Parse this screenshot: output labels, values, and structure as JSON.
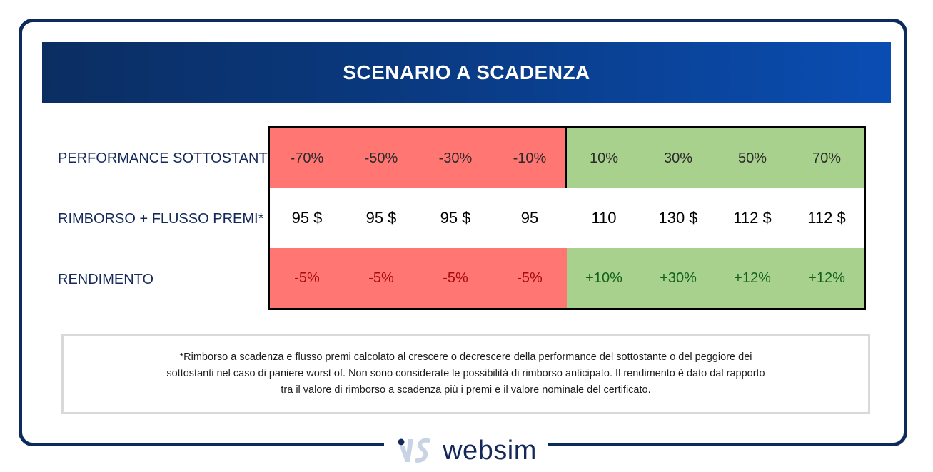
{
  "header": {
    "title": "SCENARIO A SCADENZA"
  },
  "rows": {
    "performance": {
      "label": "PERFORMANCE SOTTOSTANTE",
      "values": [
        "-70%",
        "-50%",
        "-30%",
        "-10%",
        "10%",
        "30%",
        "50%",
        "70%"
      ]
    },
    "rimborso": {
      "label": "RIMBORSO + FLUSSO PREMI*",
      "values": [
        "95 $",
        "95 $",
        "95 $",
        "95",
        "110",
        "130 $",
        "112 $",
        "112 $"
      ]
    },
    "rendimento": {
      "label": "RENDIMENTO",
      "values": [
        "-5%",
        "-5%",
        "-5%",
        "-5%",
        "+10%",
        "+30%",
        "+12%",
        "+12%"
      ]
    }
  },
  "note": {
    "line1": "*Rimborso a scadenza e flusso premi calcolato al crescere o decrescere della performance del sottostante o del peggiore dei",
    "line2": "sottostanti nel caso di paniere worst of. Non sono considerate le possibilità di rimborso anticipato. Il rendimento è dato dal rapporto",
    "line3": "tra il valore di rimborso a scadenza più i premi e il valore nominale del certificato."
  },
  "logo": {
    "text": "websim"
  },
  "colors": {
    "frame": "#0d2a5c",
    "negative_cell": "#ff7673",
    "positive_cell": "#a9d18e",
    "negative_text": "#a50b0b",
    "positive_text": "#11631c"
  }
}
